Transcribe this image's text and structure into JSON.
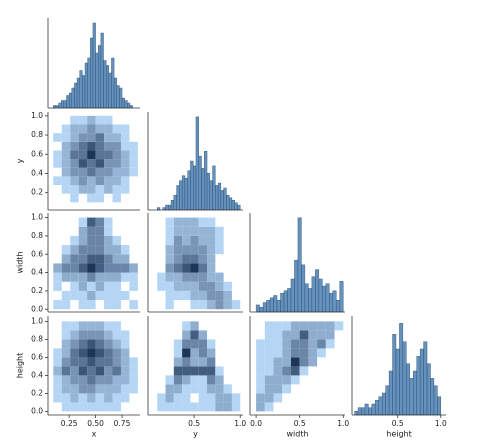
{
  "chart_data": [
    {
      "type": "histogram",
      "color": "#4a7fb0",
      "xlim": [
        0.05,
        0.92
      ],
      "ylim": [
        0,
        36
      ],
      "bins": [
        0.1,
        0.125,
        0.15,
        0.175,
        0.2,
        0.225,
        0.25,
        0.275,
        0.3,
        0.325,
        0.35,
        0.375,
        0.4,
        0.425,
        0.45,
        0.475,
        0.5,
        0.525,
        0.55,
        0.575,
        0.6,
        0.625,
        0.65,
        0.675,
        0.7,
        0.725,
        0.75,
        0.775,
        0.8,
        0.825,
        0.85
      ],
      "values": [
        1,
        1,
        2,
        3,
        3,
        5,
        6,
        8,
        10,
        12,
        15,
        13,
        18,
        20,
        28,
        34,
        22,
        25,
        30,
        19,
        17,
        14,
        20,
        12,
        9,
        8,
        4,
        3,
        2,
        1
      ]
    },
    {
      "type": "heatmap",
      "cmap": [
        "#b5d5f5",
        "#1c3558"
      ],
      "xlim": [
        0.05,
        0.92
      ],
      "ylim": [
        0.02,
        1.04
      ],
      "yticks": [
        0.2,
        0.4,
        0.6,
        0.8,
        {
          "value": 1,
          "label": "1.0"
        }
      ],
      "ylabel": "y",
      "xbins": [
        0.1,
        0.18,
        0.26,
        0.34,
        0.42,
        0.5,
        0.58,
        0.66,
        0.74,
        0.82,
        0.9
      ],
      "ybins": [
        0.1,
        0.19,
        0.28,
        0.37,
        0.46,
        0.55,
        0.64,
        0.73,
        0.82,
        0.91,
        1.0
      ],
      "counts": [
        [
          0,
          0,
          1,
          0,
          1,
          1,
          0,
          1,
          0,
          0
        ],
        [
          0,
          1,
          1,
          2,
          2,
          1,
          2,
          1,
          1,
          0
        ],
        [
          1,
          1,
          2,
          3,
          2,
          3,
          2,
          2,
          1,
          0
        ],
        [
          0,
          2,
          3,
          3,
          4,
          3,
          3,
          2,
          2,
          1
        ],
        [
          1,
          2,
          3,
          5,
          4,
          5,
          3,
          3,
          2,
          1
        ],
        [
          1,
          2,
          4,
          4,
          6,
          4,
          4,
          3,
          2,
          1
        ],
        [
          0,
          2,
          3,
          4,
          5,
          4,
          3,
          3,
          1,
          1
        ],
        [
          1,
          1,
          2,
          3,
          3,
          4,
          2,
          2,
          1,
          0
        ],
        [
          0,
          1,
          2,
          2,
          3,
          2,
          2,
          1,
          1,
          0
        ],
        [
          0,
          0,
          1,
          1,
          2,
          1,
          1,
          0,
          0,
          0
        ]
      ]
    },
    {
      "type": "histogram",
      "color": "#4a7fb0",
      "xlim": [
        0,
        1.03
      ],
      "ylim": [
        0,
        40
      ],
      "bins": [
        0.1,
        0.13,
        0.16,
        0.19,
        0.22,
        0.25,
        0.28,
        0.31,
        0.34,
        0.37,
        0.4,
        0.43,
        0.46,
        0.49,
        0.52,
        0.55,
        0.58,
        0.61,
        0.64,
        0.67,
        0.7,
        0.73,
        0.76,
        0.79,
        0.82,
        0.85,
        0.88,
        0.91,
        0.94,
        0.97,
        1.0
      ],
      "values": [
        1,
        0,
        1,
        2,
        2,
        4,
        6,
        10,
        12,
        14,
        13,
        16,
        20,
        18,
        38,
        22,
        17,
        24,
        15,
        12,
        18,
        10,
        11,
        8,
        9,
        6,
        5,
        4,
        3,
        2
      ]
    },
    {
      "type": "heatmap",
      "cmap": [
        "#b5d5f5",
        "#1c3558"
      ],
      "xlim": [
        0.05,
        0.92
      ],
      "ylim": [
        -0.03,
        1.05
      ],
      "yticks": [
        {
          "value": 0,
          "label": "0.0"
        },
        0.2,
        0.4,
        0.6,
        0.8,
        {
          "value": 1,
          "label": "1.0"
        }
      ],
      "ylabel": "width",
      "xbins": [
        0.1,
        0.18,
        0.26,
        0.34,
        0.42,
        0.5,
        0.58,
        0.66,
        0.74,
        0.82,
        0.9
      ],
      "ybins": [
        0,
        0.1,
        0.2,
        0.3,
        0.4,
        0.5,
        0.6,
        0.7,
        0.8,
        0.9,
        1.0
      ],
      "counts": [
        [
          1,
          1,
          0,
          1,
          1,
          0,
          1,
          1,
          0,
          1
        ],
        [
          0,
          1,
          1,
          1,
          2,
          1,
          1,
          1,
          1,
          0
        ],
        [
          1,
          0,
          1,
          2,
          1,
          2,
          1,
          1,
          0,
          1
        ],
        [
          1,
          2,
          2,
          2,
          3,
          2,
          2,
          2,
          1,
          1
        ],
        [
          2,
          3,
          3,
          4,
          5,
          4,
          3,
          3,
          3,
          2
        ],
        [
          0,
          2,
          3,
          3,
          4,
          4,
          3,
          2,
          2,
          0
        ],
        [
          0,
          1,
          2,
          3,
          3,
          3,
          2,
          2,
          1,
          0
        ],
        [
          0,
          0,
          1,
          2,
          3,
          3,
          2,
          1,
          0,
          0
        ],
        [
          0,
          0,
          0,
          2,
          3,
          3,
          1,
          0,
          0,
          0
        ],
        [
          0,
          0,
          0,
          1,
          4,
          3,
          1,
          0,
          0,
          0
        ]
      ]
    },
    {
      "type": "heatmap",
      "cmap": [
        "#b5d5f5",
        "#1c3558"
      ],
      "xlim": [
        0,
        1.03
      ],
      "ylim": [
        -0.03,
        1.05
      ],
      "xbins": [
        0.1,
        0.19,
        0.28,
        0.37,
        0.46,
        0.55,
        0.64,
        0.73,
        0.82,
        0.91,
        1.0
      ],
      "ybins": [
        0,
        0.1,
        0.2,
        0.3,
        0.4,
        0.5,
        0.6,
        0.7,
        0.8,
        0.9,
        1.0
      ],
      "counts": [
        [
          0,
          1,
          0,
          0,
          1,
          1,
          2,
          3,
          2,
          1
        ],
        [
          0,
          1,
          1,
          1,
          2,
          2,
          3,
          3,
          2,
          0
        ],
        [
          1,
          1,
          2,
          2,
          2,
          3,
          3,
          2,
          1,
          0
        ],
        [
          1,
          2,
          2,
          3,
          3,
          3,
          2,
          2,
          0,
          0
        ],
        [
          0,
          3,
          4,
          5,
          6,
          4,
          2,
          0,
          0,
          0
        ],
        [
          0,
          2,
          3,
          4,
          4,
          3,
          2,
          0,
          0,
          0
        ],
        [
          0,
          2,
          3,
          3,
          3,
          3,
          2,
          1,
          0,
          0
        ],
        [
          0,
          1,
          3,
          2,
          3,
          2,
          2,
          1,
          0,
          0
        ],
        [
          0,
          1,
          2,
          2,
          2,
          2,
          2,
          1,
          0,
          0
        ],
        [
          0,
          1,
          2,
          2,
          2,
          1,
          1,
          0,
          0,
          0
        ]
      ]
    },
    {
      "type": "histogram",
      "color": "#4a7fb0",
      "xlim": [
        -0.07,
        1.02
      ],
      "ylim": [
        0,
        42
      ],
      "bins": [
        0,
        0.04,
        0.08,
        0.12,
        0.16,
        0.2,
        0.24,
        0.28,
        0.32,
        0.36,
        0.4,
        0.44,
        0.48,
        0.52,
        0.56,
        0.6,
        0.64,
        0.68,
        0.72,
        0.76,
        0.8,
        0.84,
        0.88,
        0.92,
        0.96,
        1.0
      ],
      "values": [
        3,
        2,
        4,
        5,
        6,
        7,
        5,
        8,
        9,
        10,
        14,
        22,
        40,
        20,
        12,
        10,
        15,
        18,
        14,
        11,
        12,
        8,
        9,
        5,
        13
      ]
    },
    {
      "type": "heatmap",
      "cmap": [
        "#b5d5f5",
        "#1c3558"
      ],
      "xlim": [
        0.05,
        0.92
      ],
      "ylim": [
        -0.04,
        1.06
      ],
      "xticks": [
        0.25,
        {
          "value": 0.5,
          "label": "0.50"
        },
        0.75
      ],
      "xlabel": "x",
      "yticks": [
        {
          "value": 0,
          "label": "0.0"
        },
        0.2,
        0.4,
        0.6,
        0.8,
        {
          "value": 1,
          "label": "1.0"
        }
      ],
      "ylabel": "height",
      "xbins": [
        0.1,
        0.18,
        0.26,
        0.34,
        0.42,
        0.5,
        0.58,
        0.66,
        0.74,
        0.82,
        0.9
      ],
      "ybins": [
        0,
        0.1,
        0.2,
        0.3,
        0.4,
        0.5,
        0.6,
        0.7,
        0.8,
        0.9,
        1.0
      ],
      "counts": [
        [
          0,
          1,
          1,
          1,
          1,
          1,
          1,
          1,
          0,
          0
        ],
        [
          1,
          1,
          2,
          1,
          2,
          1,
          2,
          1,
          1,
          0
        ],
        [
          1,
          2,
          2,
          3,
          3,
          2,
          2,
          2,
          1,
          1
        ],
        [
          1,
          2,
          3,
          3,
          4,
          3,
          3,
          2,
          2,
          1
        ],
        [
          2,
          4,
          3,
          5,
          4,
          5,
          3,
          4,
          2,
          1
        ],
        [
          1,
          3,
          4,
          4,
          5,
          4,
          4,
          3,
          2,
          1
        ],
        [
          1,
          2,
          4,
          5,
          6,
          5,
          4,
          3,
          2,
          0
        ],
        [
          0,
          2,
          3,
          4,
          5,
          4,
          3,
          2,
          1,
          0
        ],
        [
          0,
          1,
          2,
          3,
          3,
          3,
          2,
          1,
          1,
          0
        ],
        [
          0,
          1,
          1,
          2,
          2,
          2,
          1,
          1,
          0,
          0
        ]
      ]
    },
    {
      "type": "heatmap",
      "cmap": [
        "#b5d5f5",
        "#1c3558"
      ],
      "xlim": [
        0,
        1.03
      ],
      "ylim": [
        -0.04,
        1.06
      ],
      "xticks": [
        0.5,
        {
          "value": 1,
          "label": "1.0"
        }
      ],
      "xlabel": "y",
      "xbins": [
        0.1,
        0.19,
        0.28,
        0.37,
        0.46,
        0.55,
        0.64,
        0.73,
        0.82,
        0.91,
        1.0
      ],
      "ybins": [
        0,
        0.1,
        0.2,
        0.3,
        0.4,
        0.5,
        0.6,
        0.7,
        0.8,
        0.9,
        1.0
      ],
      "counts": [
        [
          1,
          1,
          1,
          1,
          1,
          1,
          1,
          2,
          2,
          1
        ],
        [
          1,
          2,
          1,
          1,
          0,
          1,
          1,
          2,
          2,
          1
        ],
        [
          0,
          2,
          2,
          1,
          1,
          1,
          2,
          2,
          1,
          0
        ],
        [
          0,
          1,
          3,
          2,
          1,
          1,
          3,
          2,
          0,
          0
        ],
        [
          0,
          0,
          4,
          4,
          4,
          4,
          4,
          1,
          0,
          0
        ],
        [
          0,
          0,
          2,
          3,
          2,
          2,
          3,
          0,
          0,
          0
        ],
        [
          0,
          0,
          1,
          5,
          2,
          3,
          2,
          0,
          0,
          0
        ],
        [
          0,
          0,
          1,
          3,
          3,
          3,
          1,
          0,
          0,
          0
        ],
        [
          0,
          0,
          0,
          2,
          4,
          2,
          0,
          0,
          0,
          0
        ],
        [
          0,
          0,
          0,
          1,
          2,
          0,
          0,
          0,
          0,
          0
        ]
      ]
    },
    {
      "type": "heatmap",
      "cmap": [
        "#b5d5f5",
        "#1c3558"
      ],
      "xlim": [
        -0.07,
        1.02
      ],
      "ylim": [
        -0.04,
        1.06
      ],
      "xticks": [
        {
          "value": 0,
          "label": "0.0"
        },
        0.5,
        {
          "value": 1,
          "label": "1.0"
        }
      ],
      "xlabel": "width",
      "xbins": [
        0,
        0.1,
        0.2,
        0.3,
        0.4,
        0.5,
        0.6,
        0.7,
        0.8,
        0.9,
        1.0
      ],
      "ybins": [
        0,
        0.1,
        0.2,
        0.3,
        0.4,
        0.5,
        0.6,
        0.7,
        0.8,
        0.9,
        1.0
      ],
      "counts": [
        [
          2,
          1,
          0,
          0,
          0,
          0,
          0,
          0,
          0,
          0
        ],
        [
          2,
          2,
          1,
          0,
          0,
          0,
          0,
          0,
          0,
          0
        ],
        [
          1,
          2,
          2,
          1,
          0,
          0,
          0,
          0,
          0,
          0
        ],
        [
          1,
          2,
          2,
          2,
          1,
          0,
          0,
          0,
          0,
          0
        ],
        [
          1,
          1,
          2,
          3,
          4,
          1,
          0,
          0,
          0,
          0
        ],
        [
          1,
          1,
          2,
          2,
          5,
          3,
          2,
          0,
          0,
          0
        ],
        [
          1,
          1,
          1,
          2,
          3,
          3,
          2,
          1,
          0,
          0
        ],
        [
          1,
          1,
          1,
          2,
          3,
          3,
          2,
          3,
          1,
          0
        ],
        [
          0,
          1,
          1,
          2,
          2,
          4,
          2,
          2,
          2,
          0
        ],
        [
          0,
          1,
          1,
          1,
          2,
          2,
          2,
          2,
          2,
          1
        ]
      ]
    },
    {
      "type": "histogram",
      "color": "#4a7fb0",
      "xlim": [
        -0.03,
        1.06
      ],
      "ylim": [
        0,
        27
      ],
      "xticks": [
        0.5,
        {
          "value": 1,
          "label": "1.0"
        }
      ],
      "xlabel": "height",
      "bins": [
        0,
        0.04,
        0.08,
        0.12,
        0.16,
        0.2,
        0.24,
        0.28,
        0.32,
        0.36,
        0.4,
        0.44,
        0.48,
        0.52,
        0.56,
        0.6,
        0.64,
        0.68,
        0.72,
        0.76,
        0.8,
        0.84,
        0.88,
        0.92,
        0.96,
        1.0
      ],
      "values": [
        1,
        2,
        2,
        3,
        2,
        3,
        4,
        5,
        6,
        8,
        12,
        22,
        18,
        25,
        20,
        14,
        10,
        12,
        16,
        18,
        20,
        14,
        10,
        8,
        5
      ]
    }
  ]
}
